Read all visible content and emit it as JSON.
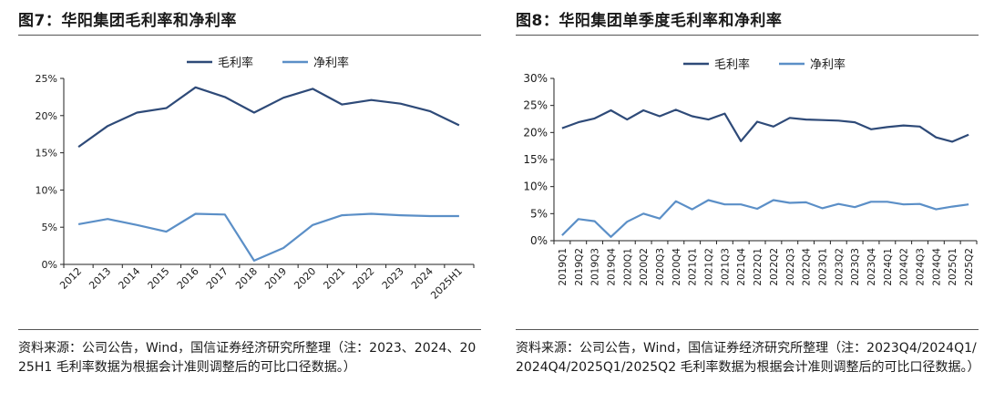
{
  "charts": [
    {
      "title": "图7：华阳集团毛利率和净利率",
      "source": "资料来源：公司公告，Wind，国信证券经济研究所整理（注：2023、2024、2025H1 毛利率数据为根据会计准则调整后的可比口径数据。）",
      "chart_data": {
        "type": "line",
        "categories": [
          "2012",
          "2013",
          "2014",
          "2015",
          "2016",
          "2017",
          "2018",
          "2019",
          "2020",
          "2021",
          "2022",
          "2023",
          "2024",
          "2025H1"
        ],
        "series": [
          {
            "name": "毛利率",
            "color": "#2e4a78",
            "values": [
              15.8,
              18.6,
              20.4,
              21.0,
              23.8,
              22.5,
              20.4,
              22.4,
              23.6,
              21.5,
              22.1,
              21.6,
              20.6,
              18.7
            ]
          },
          {
            "name": "净利率",
            "color": "#5b8fc7",
            "values": [
              5.4,
              6.1,
              5.3,
              4.4,
              6.8,
              6.7,
              0.5,
              2.2,
              5.3,
              6.6,
              6.8,
              6.6,
              6.5,
              6.5
            ]
          }
        ],
        "yticks": [
          "0%",
          "5%",
          "10%",
          "15%",
          "20%",
          "25%"
        ],
        "ylim": [
          0,
          25
        ],
        "legend": "top-center",
        "grid": false
      }
    },
    {
      "title": "图8：华阳集团单季度毛利率和净利率",
      "source": "资料来源：公司公告，Wind，国信证券经济研究所整理（注：2023Q4/2024Q1/2024Q4/2025Q1/2025Q2 毛利率数据为根据会计准则调整后的可比口径数据。）",
      "chart_data": {
        "type": "line",
        "categories": [
          "2019Q1",
          "2019Q2",
          "2019Q3",
          "2019Q4",
          "2020Q1",
          "2020Q2",
          "2020Q3",
          "2020Q4",
          "2021Q1",
          "2021Q2",
          "2021Q3",
          "2021Q4",
          "2022Q1",
          "2022Q2",
          "2022Q3",
          "2022Q4",
          "2023Q1",
          "2023Q2",
          "2023Q3",
          "2023Q4",
          "2024Q1",
          "2024Q2",
          "2024Q3",
          "2024Q4",
          "2025Q1",
          "2025Q2"
        ],
        "series": [
          {
            "name": "毛利率",
            "color": "#2e4a78",
            "values": [
              20.8,
              21.9,
              22.6,
              24.1,
              22.4,
              24.1,
              23.0,
              24.2,
              23.0,
              22.4,
              23.5,
              18.4,
              22.0,
              21.1,
              22.7,
              22.4,
              22.3,
              22.2,
              21.9,
              20.6,
              21.0,
              21.3,
              21.1,
              19.1,
              18.3,
              19.6
            ]
          },
          {
            "name": "净利率",
            "color": "#5b8fc7",
            "values": [
              1.0,
              4.0,
              3.6,
              0.7,
              3.5,
              5.0,
              4.1,
              7.3,
              5.8,
              7.5,
              6.7,
              6.7,
              5.9,
              7.5,
              7.0,
              7.1,
              6.0,
              6.8,
              6.2,
              7.2,
              7.2,
              6.7,
              6.8,
              5.8,
              6.3,
              6.7
            ]
          }
        ],
        "yticks": [
          "0%",
          "5%",
          "10%",
          "15%",
          "20%",
          "25%",
          "30%"
        ],
        "ylim": [
          0,
          30
        ],
        "legend": "top-center",
        "grid": false
      }
    }
  ]
}
